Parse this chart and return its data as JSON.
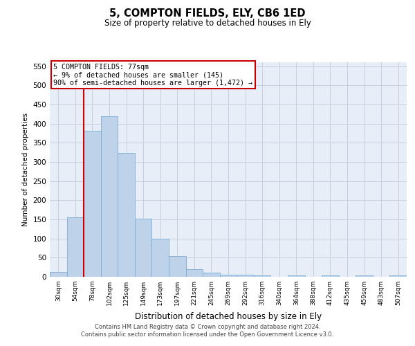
{
  "title": "5, COMPTON FIELDS, ELY, CB6 1ED",
  "subtitle": "Size of property relative to detached houses in Ely",
  "xlabel": "Distribution of detached houses by size in Ely",
  "ylabel": "Number of detached properties",
  "bar_color": "#bed3ea",
  "bar_edge_color": "#7aadd4",
  "background_color": "#e8eef8",
  "grid_color": "#c8d0e0",
  "annotation_line_color": "#cc0000",
  "annotation_box_color": "#cc0000",
  "categories": [
    "30sqm",
    "54sqm",
    "78sqm",
    "102sqm",
    "125sqm",
    "149sqm",
    "173sqm",
    "197sqm",
    "221sqm",
    "245sqm",
    "269sqm",
    "292sqm",
    "316sqm",
    "340sqm",
    "364sqm",
    "388sqm",
    "412sqm",
    "435sqm",
    "459sqm",
    "483sqm",
    "507sqm"
  ],
  "values": [
    13,
    155,
    382,
    420,
    323,
    152,
    100,
    55,
    19,
    11,
    5,
    5,
    3,
    0,
    4,
    0,
    3,
    0,
    3,
    0,
    3
  ],
  "annotation_text_line1": "5 COMPTON FIELDS: 77sqm",
  "annotation_text_line2": "← 9% of detached houses are smaller (145)",
  "annotation_text_line3": "90% of semi-detached houses are larger (1,472) →",
  "footnote_line1": "Contains HM Land Registry data © Crown copyright and database right 2024.",
  "footnote_line2": "Contains public sector information licensed under the Open Government Licence v3.0.",
  "ylim": [
    0,
    560
  ],
  "yticks": [
    0,
    50,
    100,
    150,
    200,
    250,
    300,
    350,
    400,
    450,
    500,
    550
  ]
}
